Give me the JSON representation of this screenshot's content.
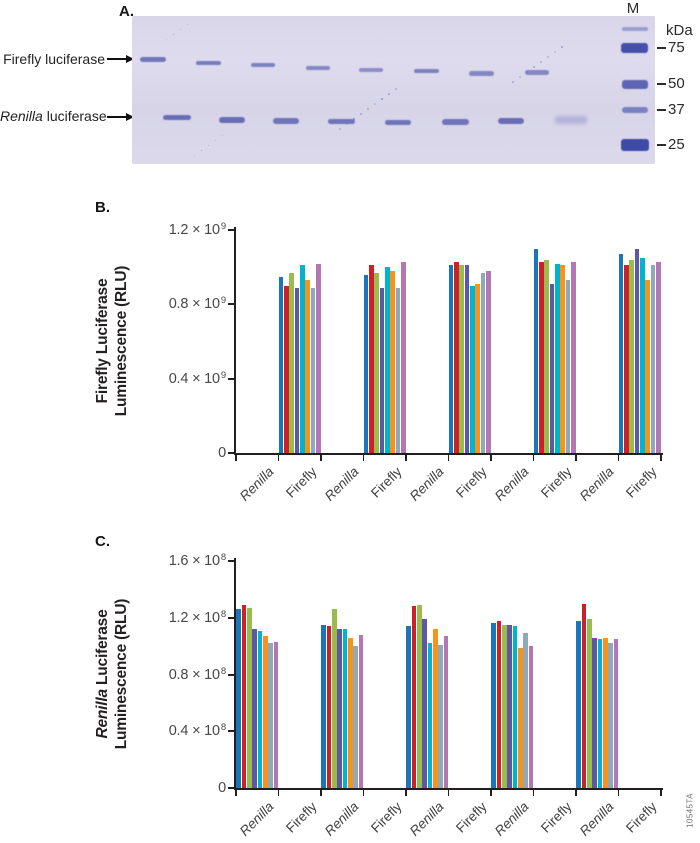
{
  "figure_code": "10545TA",
  "panel_a": {
    "label": "A.",
    "firefly_row_label": "Firefly luciferase",
    "renilla_row_label_italic": "Renilla",
    "renilla_row_label_rest": " luciferase",
    "marker_lane_label": "M",
    "unit_label": "kDa",
    "marker_weights": [
      "75",
      "50",
      "37",
      "25"
    ]
  },
  "panel_b": {
    "label": "B."
  },
  "panel_c": {
    "label": "C."
  },
  "chart_data": [
    {
      "id": "firefly_luminescence",
      "type": "bar",
      "title": "",
      "ylabel_line1_italic": "",
      "ylabel_line1_rest": "Firefly Luciferase",
      "ylabel_line2": "Luminescence (RLU)",
      "ylim": [
        0,
        1200000000
      ],
      "grid": false,
      "legend": false,
      "y_tick_values": [
        0,
        400000000,
        800000000,
        1200000000
      ],
      "y_ticks": [
        {
          "base": "0",
          "sup": ""
        },
        {
          "base": "0.4 × 10",
          "sup": "9"
        },
        {
          "base": "0.8 × 10",
          "sup": "9"
        },
        {
          "base": "1.2 × 10",
          "sup": "9"
        }
      ],
      "x_labels": [
        {
          "text": "Renilla",
          "italic": true
        },
        {
          "text": "Firefly",
          "italic": false
        },
        {
          "text": "Renilla",
          "italic": true
        },
        {
          "text": "Firefly",
          "italic": false
        },
        {
          "text": "Renilla",
          "italic": true
        },
        {
          "text": "Firefly",
          "italic": false
        },
        {
          "text": "Renilla",
          "italic": true
        },
        {
          "text": "Firefly",
          "italic": false
        },
        {
          "text": "Renilla",
          "italic": true
        },
        {
          "text": "Firefly",
          "italic": false
        }
      ],
      "group_slots": [
        1,
        3,
        5,
        7,
        9
      ],
      "palette": [
        "#1B75BB",
        "#CC2128",
        "#9CBB4D",
        "#5D58A6",
        "#00B5CB",
        "#F6921E",
        "#8FA9BB",
        "#B377B5"
      ],
      "groups": [
        [
          950000000,
          900000000,
          970000000,
          890000000,
          1010000000,
          930000000,
          890000000,
          1020000000
        ],
        [
          960000000,
          1010000000,
          970000000,
          890000000,
          1000000000,
          980000000,
          890000000,
          1030000000
        ],
        [
          1010000000,
          1030000000,
          1010000000,
          1010000000,
          900000000,
          910000000,
          970000000,
          980000000
        ],
        [
          1100000000,
          1030000000,
          1040000000,
          910000000,
          1020000000,
          1010000000,
          930000000,
          1030000000
        ],
        [
          1070000000,
          1010000000,
          1040000000,
          1100000000,
          1050000000,
          930000000,
          1010000000,
          1030000000
        ]
      ]
    },
    {
      "id": "renilla_luminescence",
      "type": "bar",
      "title": "",
      "ylabel_line1_italic": "Renilla",
      "ylabel_line1_rest": " Luciferase",
      "ylabel_line2": "Luminescence (RLU)",
      "ylim": [
        0,
        160000000
      ],
      "grid": false,
      "legend": false,
      "y_tick_values": [
        0,
        40000000,
        80000000,
        120000000,
        160000000
      ],
      "y_ticks": [
        {
          "base": "0",
          "sup": ""
        },
        {
          "base": "0.4 × 10",
          "sup": "8"
        },
        {
          "base": "0.8 × 10",
          "sup": "8"
        },
        {
          "base": "1.2 × 10",
          "sup": "8"
        },
        {
          "base": "1.6 × 10",
          "sup": "8"
        }
      ],
      "x_labels": [
        {
          "text": "Renilla",
          "italic": true
        },
        {
          "text": "Firefly",
          "italic": false
        },
        {
          "text": "Renilla",
          "italic": true
        },
        {
          "text": "Firefly",
          "italic": false
        },
        {
          "text": "Renilla",
          "italic": true
        },
        {
          "text": "Firefly",
          "italic": false
        },
        {
          "text": "Renilla",
          "italic": true
        },
        {
          "text": "Firefly",
          "italic": false
        },
        {
          "text": "Renilla",
          "italic": true
        },
        {
          "text": "Firefly",
          "italic": false
        }
      ],
      "group_slots": [
        0,
        2,
        4,
        6,
        8
      ],
      "palette": [
        "#1B75BB",
        "#CC2128",
        "#9CBB4D",
        "#5D58A6",
        "#00B5CB",
        "#F6921E",
        "#8FA9BB",
        "#B377B5"
      ],
      "groups": [
        [
          126000000,
          129000000,
          127000000,
          112000000,
          111000000,
          107000000,
          102000000,
          103000000
        ],
        [
          115000000,
          114000000,
          126000000,
          112000000,
          112000000,
          106000000,
          100000000,
          108000000
        ],
        [
          114000000,
          128000000,
          129000000,
          119000000,
          102000000,
          112000000,
          101000000,
          107000000
        ],
        [
          116000000,
          118000000,
          115000000,
          115000000,
          114000000,
          99000000,
          109000000,
          100000000
        ],
        [
          118000000,
          130000000,
          119000000,
          106000000,
          105000000,
          106000000,
          102000000,
          105000000
        ]
      ]
    }
  ]
}
